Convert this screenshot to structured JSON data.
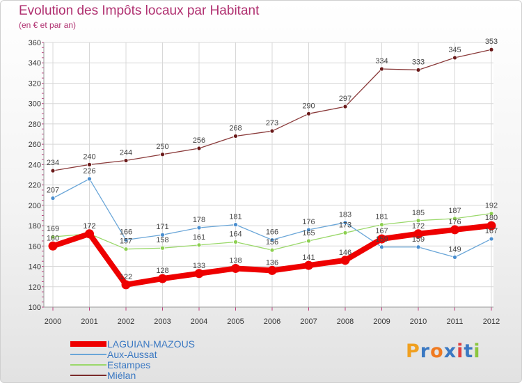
{
  "title": "Evolution des Impôts locaux par Habitant",
  "subtitle": "(en € et par an)",
  "logo": {
    "letters": [
      "P",
      "r",
      "o",
      "x",
      "i",
      "t",
      "i"
    ],
    "colors": [
      "#f0a020",
      "#3a78c2",
      "#f07a20",
      "#3a78c2",
      "#e04040",
      "#3a78c2",
      "#8cc63f"
    ]
  },
  "legend": [
    {
      "label": "LAGUIAN-MAZOUS",
      "color": "#ee0000"
    },
    {
      "label": "Aux-Aussat",
      "color": "#6aa6d8"
    },
    {
      "label": "Estampes",
      "color": "#9ad86a"
    },
    {
      "label": "Miélan",
      "color": "#7a2a2a"
    }
  ],
  "chart_data": {
    "type": "line",
    "title": "Evolution des Impôts locaux par Habitant",
    "subtitle": "(en € et par an)",
    "xlabel": "",
    "ylabel": "",
    "x": [
      "2000",
      "2001",
      "2002",
      "2003",
      "2004",
      "2005",
      "2006",
      "2007",
      "2008",
      "2009",
      "2010",
      "2011",
      "2012"
    ],
    "ylim": [
      100,
      360
    ],
    "yticks": [
      100,
      120,
      140,
      160,
      180,
      200,
      220,
      240,
      260,
      280,
      300,
      320,
      340,
      360
    ],
    "grid": true,
    "legend_position": "bottom-left",
    "series": [
      {
        "name": "LAGUIAN-MAZOUS",
        "color": "#ee0000",
        "line_color": "#ee0000",
        "marker_color": "#ee0000",
        "label_color": "#444444",
        "values": [
          160,
          172,
          122,
          128,
          133,
          138,
          136,
          141,
          146,
          167,
          172,
          176,
          180
        ],
        "labels": [
          "160",
          "172",
          "122",
          "128",
          "133",
          "138",
          "136",
          "141",
          "146",
          "167",
          "172",
          "176",
          "180"
        ]
      },
      {
        "name": "Aux-Aussat",
        "color": "#6aa6d8",
        "line_color": "#6aa6d8",
        "marker_color": "#4a8ecf",
        "label_color": "#444444",
        "values": [
          207,
          226,
          166,
          171,
          178,
          181,
          166,
          176,
          183,
          159,
          159,
          149,
          167
        ],
        "labels": [
          "207",
          "226",
          "166",
          "171",
          "178",
          "181",
          "166",
          "176",
          "183",
          "159",
          "159",
          "149",
          "167"
        ]
      },
      {
        "name": "Estampes",
        "color": "#9ad86a",
        "line_color": "#9ad86a",
        "marker_color": "#8ccf50",
        "label_color": "#444444",
        "values": [
          169,
          172,
          157,
          158,
          161,
          164,
          156,
          165,
          173,
          181,
          185,
          187,
          192
        ],
        "labels": [
          "169",
          "172",
          "157",
          "158",
          "161",
          "164",
          "156",
          "165",
          "173",
          "181",
          "185",
          "187",
          "192"
        ]
      },
      {
        "name": "Miélan",
        "color": "#7a2a2a",
        "line_color": "#8a3a3a",
        "marker_color": "#6a1a1a",
        "label_color": "#444444",
        "values": [
          234,
          240,
          244,
          250,
          256,
          268,
          273,
          290,
          297,
          334,
          333,
          345,
          353
        ],
        "labels": [
          "234",
          "240",
          "244",
          "250",
          "256",
          "268",
          "273",
          "290",
          "297",
          "334",
          "333",
          "345",
          "353"
        ]
      }
    ]
  }
}
